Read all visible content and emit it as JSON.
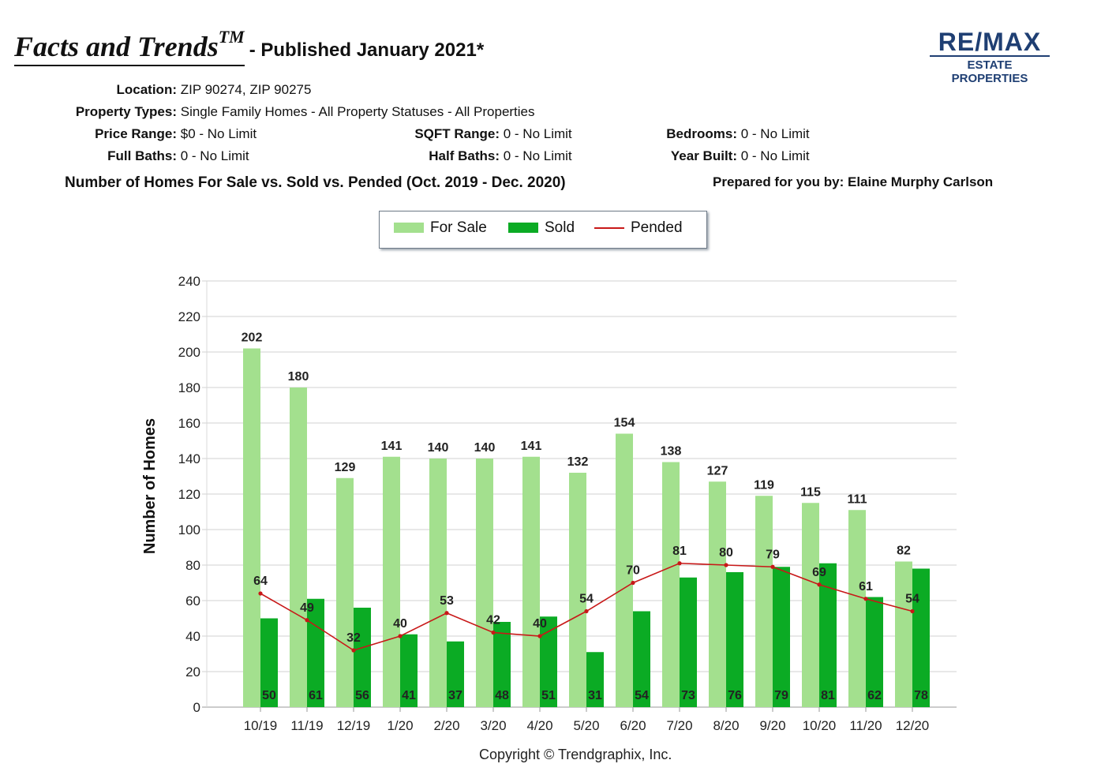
{
  "header": {
    "brand": "Facts and Trends",
    "brand_tm": "TM",
    "published": "- Published January 2021*",
    "logo_line1": "RE/MAX",
    "logo_line2": "ESTATE PROPERTIES"
  },
  "criteria": {
    "location_label": "Location:",
    "location_value": "ZIP 90274, ZIP 90275",
    "property_types_label": "Property Types:",
    "property_types_value": "Single Family Homes - All Property Statuses - All Properties",
    "price_range_label": "Price Range:",
    "price_range_value": "$0 - No Limit",
    "sqft_range_label": "SQFT Range:",
    "sqft_range_value": "0 - No Limit",
    "bedrooms_label": "Bedrooms:",
    "bedrooms_value": "0 - No Limit",
    "full_baths_label": "Full Baths:",
    "full_baths_value": "0 - No Limit",
    "half_baths_label": "Half Baths:",
    "half_baths_value": "0 - No Limit",
    "year_built_label": "Year Built:",
    "year_built_value": "0 - No Limit"
  },
  "report": {
    "chart_title": "Number of Homes For Sale vs. Sold vs. Pended (Oct. 2019 - Dec. 2020)",
    "prepared_by": "Prepared for you by: Elaine Murphy Carlson",
    "copyright": "Copyright © Trendgraphix, Inc."
  },
  "colors": {
    "for_sale": "#a3e08e",
    "sold": "#0bab24",
    "pended": "#c81818",
    "grid": "#d0d0d0"
  },
  "chart_data": {
    "type": "bar",
    "title": "Number of Homes For Sale vs. Sold vs. Pended (Oct. 2019 - Dec. 2020)",
    "xlabel": "",
    "ylabel": "Number of Homes",
    "ylim": [
      0,
      240
    ],
    "yticks": [
      0,
      20,
      40,
      60,
      80,
      100,
      120,
      140,
      160,
      180,
      200,
      220,
      240
    ],
    "grid": true,
    "legend": "top-center",
    "categories": [
      "10/19",
      "11/19",
      "12/19",
      "1/20",
      "2/20",
      "3/20",
      "4/20",
      "5/20",
      "6/20",
      "7/20",
      "8/20",
      "9/20",
      "10/20",
      "11/20",
      "12/20"
    ],
    "series": [
      {
        "name": "For Sale",
        "kind": "bar",
        "values": [
          202,
          180,
          129,
          141,
          140,
          140,
          141,
          132,
          154,
          138,
          127,
          119,
          115,
          111,
          82
        ]
      },
      {
        "name": "Sold",
        "kind": "bar",
        "values": [
          50,
          61,
          56,
          41,
          37,
          48,
          51,
          31,
          54,
          73,
          76,
          79,
          81,
          62,
          78
        ]
      },
      {
        "name": "Pended",
        "kind": "line",
        "values": [
          64,
          49,
          32,
          40,
          53,
          42,
          40,
          54,
          70,
          81,
          80,
          79,
          69,
          61,
          54
        ]
      }
    ]
  }
}
